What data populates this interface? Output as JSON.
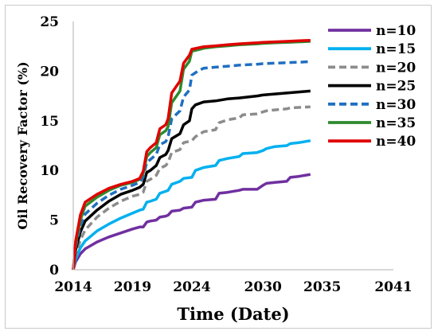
{
  "chart_data": {
    "type": "line",
    "title": "",
    "xlabel": "Time (Date)",
    "ylabel": "Oil Recovery Factor (%)",
    "xlim": [
      2014,
      2041
    ],
    "ylim": [
      0,
      25
    ],
    "x_ticks": [
      "2014",
      "2019",
      "2024",
      "2030",
      "2035",
      "2041"
    ],
    "y_ticks": [
      "0",
      "5",
      "10",
      "15",
      "20",
      "25"
    ],
    "grid": false,
    "legend": "right",
    "series": [
      {
        "name": "n=10",
        "color": "#7030a0",
        "dash": "solid",
        "x": [
          2014.0,
          2014.2,
          2014.6,
          2015,
          2016,
          2017,
          2018,
          2019,
          2019.6,
          2019.9,
          2020.2,
          2020.5,
          2021,
          2021.3,
          2021.8,
          2022,
          2022.3,
          2023,
          2023.3,
          2024,
          2024.3,
          2025,
          2026,
          2026.3,
          2027,
          2028,
          2028.3,
          2029.5,
          2030,
          2030.3,
          2031,
          2032,
          2032.3,
          2033,
          2034
        ],
        "y": [
          0.0,
          0.8,
          1.6,
          2.1,
          2.8,
          3.3,
          3.7,
          4.1,
          4.3,
          4.3,
          4.8,
          4.9,
          5.0,
          5.3,
          5.4,
          5.5,
          5.9,
          6.0,
          6.2,
          6.3,
          6.8,
          7.0,
          7.1,
          7.7,
          7.8,
          8.0,
          8.1,
          8.1,
          8.5,
          8.7,
          8.8,
          8.9,
          9.3,
          9.4,
          9.6
        ]
      },
      {
        "name": "n=15",
        "color": "#00b0f0",
        "dash": "solid",
        "x": [
          2014.0,
          2014.2,
          2014.6,
          2015,
          2016,
          2017,
          2018,
          2019,
          2019.6,
          2019.9,
          2020.2,
          2020.5,
          2021,
          2021.3,
          2021.8,
          2022,
          2022.3,
          2023,
          2023.3,
          2024,
          2024.3,
          2025,
          2026,
          2026.3,
          2027,
          2028,
          2028.3,
          2029.5,
          2030,
          2030.3,
          2031,
          2032,
          2032.3,
          2033,
          2034
        ],
        "y": [
          0.0,
          1.1,
          2.2,
          2.9,
          3.9,
          4.6,
          5.2,
          5.7,
          6.0,
          6.1,
          6.8,
          6.9,
          7.1,
          7.7,
          7.9,
          8.0,
          8.6,
          8.9,
          9.2,
          9.3,
          10.0,
          10.3,
          10.5,
          11.0,
          11.2,
          11.4,
          11.7,
          11.8,
          12.0,
          12.2,
          12.4,
          12.5,
          12.7,
          12.8,
          13.0
        ]
      },
      {
        "name": "n=20",
        "color": "#8c8c8c",
        "dash": "dashed",
        "x": [
          2014.0,
          2014.2,
          2014.6,
          2015,
          2016,
          2017,
          2018,
          2019,
          2019.6,
          2019.9,
          2020.2,
          2020.5,
          2021,
          2021.3,
          2021.8,
          2022,
          2022.3,
          2023,
          2023.3,
          2024,
          2024.3,
          2025,
          2026,
          2026.3,
          2027,
          2028,
          2028.3,
          2029.5,
          2030,
          2030.3,
          2031,
          2032,
          2032.3,
          2033,
          2034
        ],
        "y": [
          0.0,
          1.5,
          3.0,
          4.0,
          5.3,
          6.2,
          6.9,
          7.4,
          7.6,
          7.8,
          8.9,
          9.1,
          9.5,
          10.2,
          10.5,
          10.8,
          11.8,
          12.1,
          12.8,
          13.0,
          13.4,
          13.9,
          14.1,
          14.8,
          15.1,
          15.3,
          15.6,
          15.7,
          15.9,
          16.0,
          16.1,
          16.2,
          16.3,
          16.35,
          16.4
        ]
      },
      {
        "name": "n=25",
        "color": "#000000",
        "dash": "solid",
        "x": [
          2014.0,
          2014.2,
          2014.6,
          2015,
          2016,
          2017,
          2018,
          2019,
          2019.6,
          2019.9,
          2020.2,
          2020.5,
          2021,
          2021.3,
          2021.8,
          2022,
          2022.3,
          2023,
          2023.3,
          2023.8,
          2024,
          2024.3,
          2025,
          2026,
          2027,
          2028,
          2029.5,
          2030,
          2031,
          2032,
          2033,
          2034
        ],
        "y": [
          0.0,
          2.0,
          3.8,
          4.9,
          6.0,
          6.9,
          7.6,
          8.0,
          8.3,
          8.6,
          9.8,
          10.0,
          10.5,
          11.3,
          11.6,
          12.0,
          13.2,
          13.7,
          14.6,
          15.0,
          16.2,
          16.6,
          16.9,
          17.0,
          17.2,
          17.3,
          17.5,
          17.6,
          17.7,
          17.8,
          17.9,
          18.0
        ]
      },
      {
        "name": "n=30",
        "color": "#1f6fc1",
        "dash": "dashed",
        "x": [
          2014.0,
          2014.2,
          2014.6,
          2015,
          2016,
          2017,
          2018,
          2019,
          2019.6,
          2019.9,
          2020.2,
          2020.5,
          2021,
          2021.3,
          2021.8,
          2022,
          2022.3,
          2023,
          2023.3,
          2023.8,
          2024,
          2024.5,
          2025,
          2026,
          2027,
          2028,
          2029.5,
          2030,
          2031,
          2032,
          2033,
          2034
        ],
        "y": [
          0.0,
          2.3,
          4.4,
          5.6,
          6.7,
          7.5,
          8.1,
          8.5,
          8.8,
          9.3,
          10.8,
          11.1,
          11.6,
          12.6,
          12.9,
          13.4,
          15.2,
          16.0,
          17.4,
          18.1,
          19.6,
          20.0,
          20.3,
          20.4,
          20.5,
          20.6,
          20.7,
          20.75,
          20.8,
          20.85,
          20.9,
          20.95
        ]
      },
      {
        "name": "n=35",
        "color": "#2e8b2e",
        "dash": "solid",
        "x": [
          2014.0,
          2014.2,
          2014.6,
          2015,
          2016,
          2017,
          2018,
          2019,
          2019.6,
          2019.9,
          2020.2,
          2020.5,
          2021,
          2021.3,
          2021.8,
          2022,
          2022.3,
          2023,
          2023.3,
          2023.8,
          2024,
          2025,
          2026,
          2027,
          2028,
          2029.5,
          2030,
          2031,
          2032,
          2033,
          2034
        ],
        "y": [
          0.0,
          2.6,
          5.0,
          6.4,
          7.3,
          8.0,
          8.5,
          8.8,
          9.1,
          9.7,
          11.4,
          11.8,
          12.3,
          13.6,
          14.0,
          14.4,
          16.8,
          18.0,
          20.2,
          21.0,
          22.0,
          22.3,
          22.45,
          22.55,
          22.65,
          22.75,
          22.8,
          22.85,
          22.9,
          22.95,
          23.0
        ]
      },
      {
        "name": "n=40",
        "color": "#e00000",
        "dash": "solid",
        "x": [
          2014.0,
          2014.2,
          2014.6,
          2015,
          2016,
          2017,
          2018,
          2019,
          2019.6,
          2019.9,
          2020.2,
          2020.5,
          2021,
          2021.3,
          2021.8,
          2022,
          2022.3,
          2023,
          2023.3,
          2023.8,
          2024,
          2025,
          2026,
          2027,
          2028,
          2029.5,
          2030,
          2031,
          2032,
          2033,
          2034
        ],
        "y": [
          0.0,
          2.9,
          5.5,
          6.8,
          7.6,
          8.2,
          8.6,
          8.9,
          9.2,
          9.9,
          11.9,
          12.3,
          12.8,
          14.2,
          14.6,
          15.2,
          17.8,
          19.0,
          20.8,
          21.6,
          22.2,
          22.45,
          22.55,
          22.65,
          22.75,
          22.85,
          22.9,
          22.95,
          23.0,
          23.05,
          23.1
        ]
      }
    ]
  }
}
